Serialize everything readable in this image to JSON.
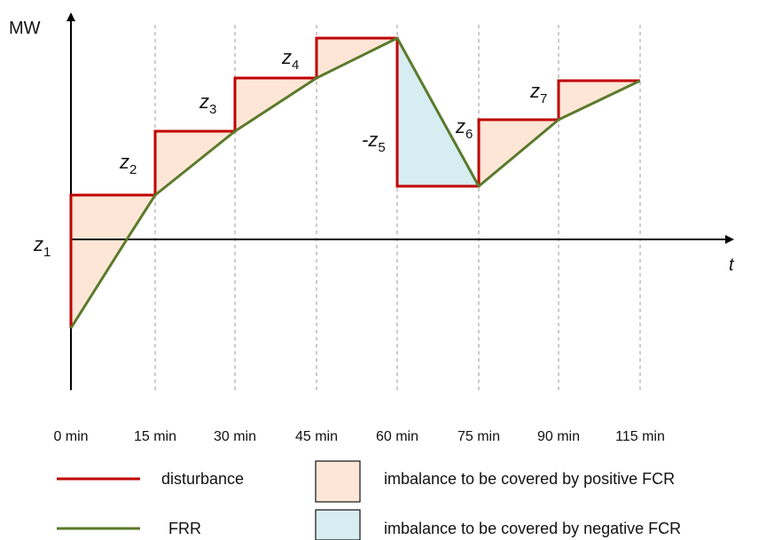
{
  "axes": {
    "y_label": "MW",
    "x_label": "t"
  },
  "time_ticks": [
    "0 min",
    "15 min",
    "30 min",
    "45 min",
    "60 min",
    "75 min",
    "90 min",
    "115 min"
  ],
  "step_labels": [
    {
      "prefix": "",
      "var": "z",
      "sub": "1"
    },
    {
      "prefix": "",
      "var": "z",
      "sub": "2"
    },
    {
      "prefix": "",
      "var": "z",
      "sub": "3"
    },
    {
      "prefix": "",
      "var": "z",
      "sub": "4"
    },
    {
      "prefix": "-",
      "var": "z",
      "sub": "5"
    },
    {
      "prefix": "",
      "var": "z",
      "sub": "6"
    },
    {
      "prefix": "",
      "var": "z",
      "sub": "7"
    }
  ],
  "legend": {
    "disturbance": "disturbance",
    "frr": "FRR",
    "positive": "imbalance to be covered by positive FCR",
    "negative": "imbalance to be covered by negative FCR"
  },
  "colors": {
    "disturbance": "#c00000",
    "frr": "#5a7a2a",
    "positive_fill": "#fde6d6",
    "negative_fill": "#d6edf2",
    "axis": "#000000",
    "gridline": "#999999"
  }
}
